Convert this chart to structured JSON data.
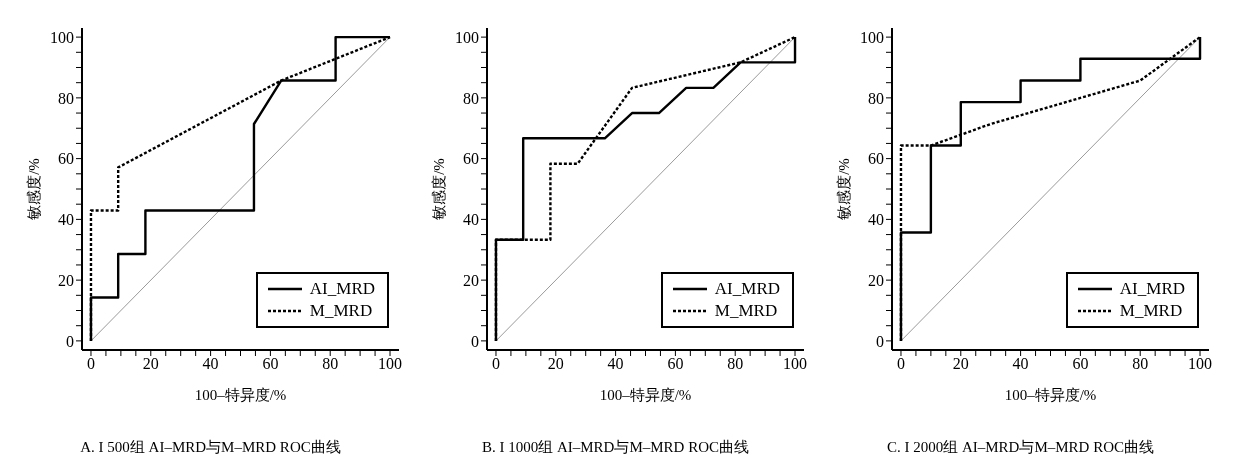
{
  "chart_data": [
    {
      "type": "line",
      "title": "A. I 500组 AI–MRD与M–MRD ROC曲线",
      "xlabel": "100–特异度/%",
      "ylabel": "敏感度/%",
      "xlim": [
        -3,
        103
      ],
      "ylim": [
        -3,
        103
      ],
      "xticks": [
        0,
        {
          "value": 5,
          "label": null
        },
        {
          "value": 10,
          "label": null
        },
        {
          "value": 15,
          "label": null
        },
        20,
        {
          "value": 25,
          "label": null
        },
        {
          "value": 30,
          "label": null
        },
        {
          "value": 35,
          "label": null
        },
        40,
        {
          "value": 45,
          "label": null
        },
        {
          "value": 50,
          "label": null
        },
        {
          "value": 55,
          "label": null
        },
        60,
        {
          "value": 65,
          "label": null
        },
        {
          "value": 70,
          "label": null
        },
        {
          "value": 75,
          "label": null
        },
        80,
        {
          "value": 85,
          "label": null
        },
        {
          "value": 90,
          "label": null
        },
        {
          "value": 95,
          "label": null
        },
        100
      ],
      "yticks": [
        0,
        {
          "value": 5,
          "label": null
        },
        {
          "value": 10,
          "label": null
        },
        {
          "value": 15,
          "label": null
        },
        20,
        {
          "value": 25,
          "label": null
        },
        {
          "value": 30,
          "label": null
        },
        {
          "value": 35,
          "label": null
        },
        40,
        {
          "value": 45,
          "label": null
        },
        {
          "value": 50,
          "label": null
        },
        {
          "value": 55,
          "label": null
        },
        60,
        {
          "value": 65,
          "label": null
        },
        {
          "value": 70,
          "label": null
        },
        {
          "value": 75,
          "label": null
        },
        80,
        {
          "value": 85,
          "label": null
        },
        {
          "value": 90,
          "label": null
        },
        {
          "value": 95,
          "label": null
        },
        100
      ],
      "legend": "bottom right",
      "series": [
        {
          "color": "#808080",
          "line_style": "solid",
          "x": [
            0,
            100
          ],
          "values": [
            0,
            100
          ]
        },
        {
          "name": "AI_MRD",
          "color": "#000000",
          "line_style": "solid",
          "x": [
            0,
            0,
            9.1,
            9.1,
            18.2,
            18.2,
            54.5,
            54.5,
            63.6,
            81.8,
            81.8,
            100
          ],
          "values": [
            0,
            14.3,
            14.3,
            28.6,
            28.6,
            42.9,
            42.9,
            71.4,
            85.7,
            85.7,
            100,
            100
          ]
        },
        {
          "name": "M_MRD",
          "color": "#000000",
          "line_style": "dashed",
          "x": [
            0,
            0,
            9.1,
            9.1,
            63.6,
            100
          ],
          "values": [
            0,
            42.9,
            42.9,
            57.1,
            85.7,
            100
          ]
        }
      ]
    },
    {
      "type": "line",
      "title": "B. I 1000组 AI–MRD与M–MRD ROC曲线",
      "xlabel": "100–特异度/%",
      "ylabel": "敏感度/%",
      "xlim": [
        -3,
        103
      ],
      "ylim": [
        -3,
        103
      ],
      "xticks": [
        0,
        {
          "value": 5,
          "label": null
        },
        {
          "value": 10,
          "label": null
        },
        {
          "value": 15,
          "label": null
        },
        20,
        {
          "value": 25,
          "label": null
        },
        {
          "value": 30,
          "label": null
        },
        {
          "value": 35,
          "label": null
        },
        40,
        {
          "value": 45,
          "label": null
        },
        {
          "value": 50,
          "label": null
        },
        {
          "value": 55,
          "label": null
        },
        60,
        {
          "value": 65,
          "label": null
        },
        {
          "value": 70,
          "label": null
        },
        {
          "value": 75,
          "label": null
        },
        80,
        {
          "value": 85,
          "label": null
        },
        {
          "value": 90,
          "label": null
        },
        {
          "value": 95,
          "label": null
        },
        100
      ],
      "yticks": [
        0,
        {
          "value": 5,
          "label": null
        },
        {
          "value": 10,
          "label": null
        },
        {
          "value": 15,
          "label": null
        },
        20,
        {
          "value": 25,
          "label": null
        },
        {
          "value": 30,
          "label": null
        },
        {
          "value": 35,
          "label": null
        },
        40,
        {
          "value": 45,
          "label": null
        },
        {
          "value": 50,
          "label": null
        },
        {
          "value": 55,
          "label": null
        },
        60,
        {
          "value": 65,
          "label": null
        },
        {
          "value": 70,
          "label": null
        },
        {
          "value": 75,
          "label": null
        },
        80,
        {
          "value": 85,
          "label": null
        },
        {
          "value": 90,
          "label": null
        },
        {
          "value": 95,
          "label": null
        },
        100
      ],
      "legend": "bottom right",
      "series": [
        {
          "color": "#808080",
          "line_style": "solid",
          "x": [
            0,
            100
          ],
          "values": [
            0,
            100
          ]
        },
        {
          "name": "AI_MRD",
          "color": "#000000",
          "line_style": "solid",
          "x": [
            0,
            0,
            9.1,
            9.1,
            36.4,
            45.5,
            54.5,
            63.6,
            72.7,
            81.8,
            100,
            100
          ],
          "values": [
            0,
            33.3,
            33.3,
            66.7,
            66.7,
            75,
            75,
            83.3,
            83.3,
            91.7,
            91.7,
            100
          ]
        },
        {
          "name": "M_MRD",
          "color": "#000000",
          "line_style": "dashed",
          "x": [
            0,
            0,
            18.2,
            18.2,
            27.3,
            45.5,
            81.8,
            100
          ],
          "values": [
            0,
            33.3,
            33.3,
            58.3,
            58.3,
            83.3,
            91.7,
            100
          ]
        }
      ]
    },
    {
      "type": "line",
      "title": "C. I 2000组 AI–MRD与M–MRD ROC曲线",
      "xlabel": "100–特异度/%",
      "ylabel": "敏感度/%",
      "xlim": [
        -3,
        103
      ],
      "ylim": [
        -3,
        103
      ],
      "xticks": [
        0,
        {
          "value": 5,
          "label": null
        },
        {
          "value": 10,
          "label": null
        },
        {
          "value": 15,
          "label": null
        },
        20,
        {
          "value": 25,
          "label": null
        },
        {
          "value": 30,
          "label": null
        },
        {
          "value": 35,
          "label": null
        },
        40,
        {
          "value": 45,
          "label": null
        },
        {
          "value": 50,
          "label": null
        },
        {
          "value": 55,
          "label": null
        },
        60,
        {
          "value": 65,
          "label": null
        },
        {
          "value": 70,
          "label": null
        },
        {
          "value": 75,
          "label": null
        },
        80,
        {
          "value": 85,
          "label": null
        },
        {
          "value": 90,
          "label": null
        },
        {
          "value": 95,
          "label": null
        },
        100
      ],
      "yticks": [
        0,
        {
          "value": 5,
          "label": null
        },
        {
          "value": 10,
          "label": null
        },
        {
          "value": 15,
          "label": null
        },
        20,
        {
          "value": 25,
          "label": null
        },
        {
          "value": 30,
          "label": null
        },
        {
          "value": 35,
          "label": null
        },
        40,
        {
          "value": 45,
          "label": null
        },
        {
          "value": 50,
          "label": null
        },
        {
          "value": 55,
          "label": null
        },
        60,
        {
          "value": 65,
          "label": null
        },
        {
          "value": 70,
          "label": null
        },
        {
          "value": 75,
          "label": null
        },
        80,
        {
          "value": 85,
          "label": null
        },
        {
          "value": 90,
          "label": null
        },
        {
          "value": 95,
          "label": null
        },
        100
      ],
      "legend": "bottom right",
      "series": [
        {
          "color": "#808080",
          "line_style": "solid",
          "x": [
            0,
            100
          ],
          "values": [
            0,
            100
          ]
        },
        {
          "name": "AI_MRD",
          "color": "#000000",
          "line_style": "solid",
          "x": [
            0,
            0,
            10,
            10,
            20,
            20,
            40,
            40,
            60,
            60,
            100,
            100
          ],
          "values": [
            0,
            35.7,
            35.7,
            64.3,
            64.3,
            78.6,
            78.6,
            85.7,
            85.7,
            92.9,
            92.9,
            100
          ]
        },
        {
          "name": "M_MRD",
          "color": "#000000",
          "line_style": "dashed",
          "x": [
            0,
            0,
            10,
            30,
            80,
            100
          ],
          "values": [
            0,
            64.3,
            64.3,
            71.4,
            85.7,
            100
          ]
        }
      ]
    }
  ]
}
